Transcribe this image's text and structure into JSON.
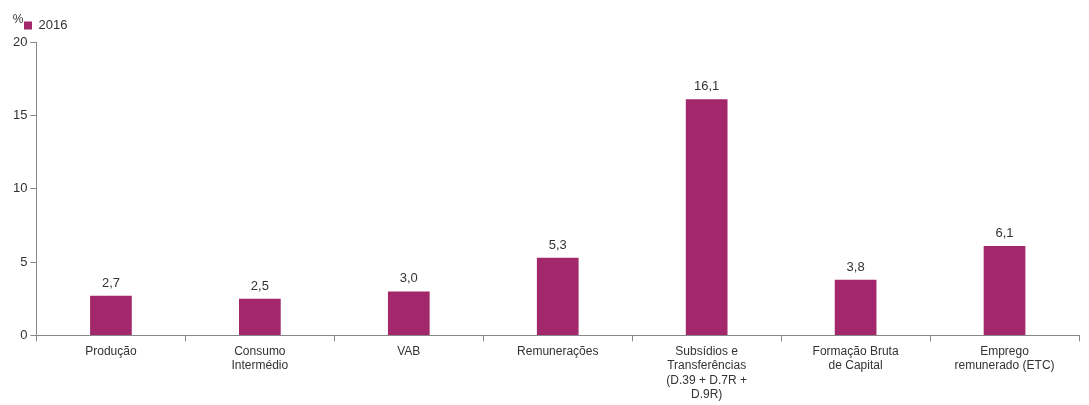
{
  "chart_data": {
    "type": "bar",
    "ylabel": "%",
    "categories": [
      "Produção",
      "Consumo\nIntermédio",
      "VAB",
      "Remunerações",
      "Subsídios e\nTransferências\n(D.39 + D.7R +\nD.9R)",
      "Formação Bruta\nde Capital",
      "Emprego\nremunerado (ETC)"
    ],
    "series": [
      {
        "name": "2016",
        "color": "#a3276b",
        "values": [
          2.7,
          2.5,
          3.0,
          5.3,
          16.1,
          3.8,
          6.1
        ],
        "value_labels": [
          "2,7",
          "2,5",
          "3,0",
          "5,3",
          "16,1",
          "3,8",
          "6,1"
        ]
      }
    ],
    "ylim": [
      0,
      20
    ],
    "yticks": [
      0,
      5,
      10,
      15,
      20
    ],
    "grid": false,
    "legend": "top left"
  }
}
